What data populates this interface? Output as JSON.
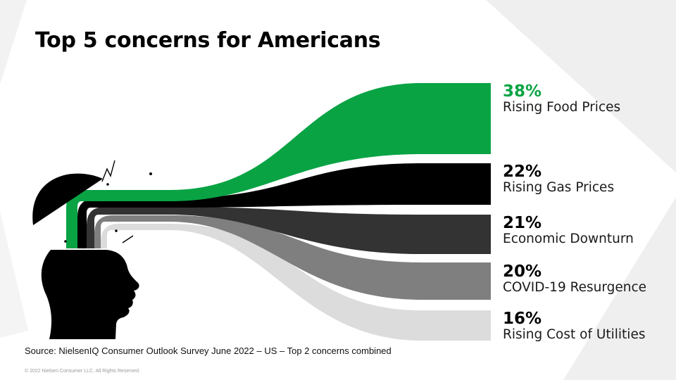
{
  "title": "Top 5 concerns for Americans",
  "colors": {
    "background": "#ffffff",
    "corner_shade": "#eeeeee",
    "accent_green": "#09a344"
  },
  "chart_data": {
    "type": "bar",
    "title": "Top 5 concerns for Americans",
    "categories": [
      "Rising Food Prices",
      "Rising Gas Prices",
      "Economic Downturn",
      "COVID-19 Resurgence",
      "Rising Cost of Utilities"
    ],
    "values": [
      38,
      22,
      21,
      20,
      16
    ],
    "value_labels": [
      "38%",
      "22%",
      "21%",
      "20%",
      "16%"
    ],
    "colors": [
      "#09a344",
      "#000000",
      "#333333",
      "#7f7f7f",
      "#dcdcdc"
    ],
    "style": "flows emerging from an open head silhouette into horizontal bars"
  },
  "source": "Source: NielsenIQ Consumer Outlook Survey June 2022 – US – Top 2 concerns combined",
  "copyright": "© 2022 Nielsen Consumer LLC. All Rights Reserved."
}
